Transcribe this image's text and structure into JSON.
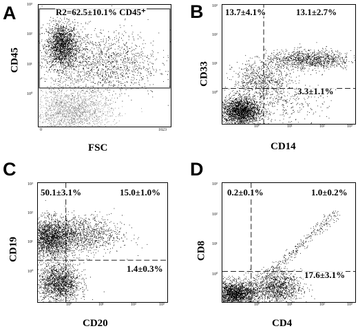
{
  "panels": [
    {
      "letter": "A",
      "xlabel": "FSC",
      "ylabel": "CD45",
      "x_ticks": [
        "0",
        "1023"
      ],
      "y_ticks": [
        "10⁰",
        "10¹",
        "10²",
        "10³"
      ],
      "gate_label": "R2=62.5±10.1% CD45⁺"
    },
    {
      "letter": "B",
      "xlabel": "CD14",
      "ylabel": "CD33",
      "x_ticks": [
        "10⁰",
        "10¹",
        "10²",
        "10³"
      ],
      "y_ticks": [
        "10⁰",
        "10¹",
        "10²",
        "10³"
      ],
      "quadrants": {
        "upper_left": "13.7±4.1%",
        "upper_right": "13.1±2.7%",
        "lower_right": "3.3±1.1%"
      }
    },
    {
      "letter": "C",
      "xlabel": "CD20",
      "ylabel": "CD19",
      "x_ticks": [
        "10⁰",
        "10¹",
        "10²",
        "10³"
      ],
      "y_ticks": [
        "10⁰",
        "10¹",
        "10²",
        "10³"
      ],
      "quadrants": {
        "upper_left": "50.1±3.1%",
        "upper_right": "15.0±1.0%",
        "lower_right": "1.4±0.3%"
      }
    },
    {
      "letter": "D",
      "xlabel": "CD4",
      "ylabel": "CD8",
      "x_ticks": [
        "10⁰",
        "10¹",
        "10²",
        "10³"
      ],
      "y_ticks": [
        "10⁰",
        "10¹",
        "10²",
        "10³"
      ],
      "quadrants": {
        "upper_left": "0.2±0.1%",
        "upper_right": "1.0±0.2%",
        "lower_right": "17.6±3.1%"
      }
    }
  ],
  "chart_data": [
    {
      "type": "scatter",
      "panel": "A",
      "xlabel": "FSC",
      "ylabel": "CD45",
      "xlim": [
        0,
        1023
      ],
      "ylim": [
        0,
        3
      ],
      "y_scale": "log10 decades",
      "gate": {
        "name": "R2",
        "x": [
          0,
          1023
        ],
        "y": [
          0.95,
          2.9
        ],
        "label": "R2=62.5±10.1% CD45⁺"
      },
      "populations": [
        {
          "cx": 180,
          "cy": 2.0,
          "sx": 60,
          "sy": 0.28,
          "n": 1800,
          "color": "#000000"
        },
        {
          "cx": 480,
          "cy": 1.55,
          "sx": 230,
          "sy": 0.4,
          "n": 1500,
          "color": "#000000"
        },
        {
          "cx": 260,
          "cy": 0.35,
          "sx": 150,
          "sy": 0.3,
          "n": 1900,
          "color": "#8a8a8a"
        }
      ]
    },
    {
      "type": "scatter",
      "panel": "B",
      "xlabel": "CD14",
      "ylabel": "CD33",
      "xlim": [
        -0.8,
        2.9
      ],
      "ylim": [
        -0.8,
        2.9
      ],
      "scale": "log10 decades",
      "quadrant_gate": {
        "x": 0.35,
        "y": 0.3
      },
      "quadrants": {
        "upper_left": "13.7±4.1%",
        "upper_right": "13.1±2.7%",
        "lower_right": "3.3±1.1%"
      },
      "populations": [
        {
          "cx": -0.3,
          "cy": -0.4,
          "sx": 0.28,
          "sy": 0.22,
          "n": 2200,
          "color": "#000000"
        },
        {
          "cx": 1.6,
          "cy": 1.2,
          "sx": 0.6,
          "sy": 0.15,
          "n": 1100,
          "color": "#000000"
        },
        {
          "cx": 0.3,
          "cy": 0.55,
          "sx": 0.4,
          "sy": 0.3,
          "n": 700,
          "color": "#000000"
        },
        {
          "cx": 0.9,
          "cy": -0.2,
          "sx": 0.6,
          "sy": 0.35,
          "n": 300,
          "color": "#000000"
        }
      ]
    },
    {
      "type": "scatter",
      "panel": "C",
      "xlabel": "CD20",
      "ylabel": "CD19",
      "xlim": [
        -0.8,
        2.9
      ],
      "ylim": [
        -0.8,
        2.9
      ],
      "scale": "log10 decades",
      "quadrant_gate": {
        "x": 0.0,
        "y": 0.5
      },
      "quadrants": {
        "upper_left": "50.1±3.1%",
        "upper_right": "15.0±1.0%",
        "lower_right": "1.4±0.3%"
      },
      "populations": [
        {
          "cx": -0.45,
          "cy": 1.2,
          "sx": 0.35,
          "sy": 0.3,
          "n": 2200,
          "color": "#000000"
        },
        {
          "cx": 0.5,
          "cy": 1.3,
          "sx": 0.55,
          "sy": 0.3,
          "n": 1000,
          "color": "#000000"
        },
        {
          "cx": -0.2,
          "cy": -0.2,
          "sx": 0.3,
          "sy": 0.3,
          "n": 1600,
          "color": "#000000"
        }
      ]
    },
    {
      "type": "scatter",
      "panel": "D",
      "xlabel": "CD4",
      "ylabel": "CD8",
      "xlim": [
        -0.8,
        2.9
      ],
      "ylim": [
        -0.8,
        2.9
      ],
      "scale": "log10 decades",
      "quadrant_gate": {
        "x": 0.0,
        "y": 0.15
      },
      "quadrants": {
        "upper_left": "0.2±0.1%",
        "upper_right": "1.0±0.2%",
        "lower_right": "17.6±3.1%"
      },
      "populations": [
        {
          "cx": -0.45,
          "cy": -0.55,
          "sx": 0.3,
          "sy": 0.2,
          "n": 2000,
          "color": "#000000"
        },
        {
          "cx": 0.7,
          "cy": -0.35,
          "sx": 0.35,
          "sy": 0.25,
          "n": 1200,
          "color": "#000000"
        }
      ],
      "diagonal_trail": {
        "x": [
          0.3,
          2.4
        ],
        "y": [
          -0.1,
          2.0
        ],
        "n": 320,
        "color": "#000000"
      }
    }
  ]
}
